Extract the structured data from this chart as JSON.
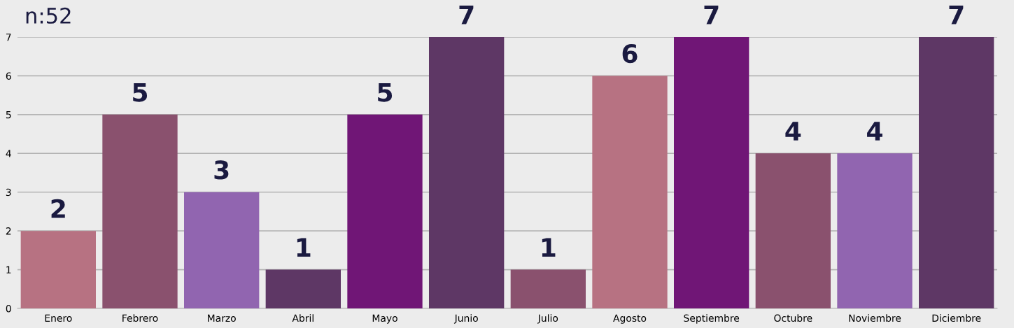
{
  "chart_data": {
    "type": "bar",
    "title": "n:52",
    "categories": [
      "Enero",
      "Febrero",
      "Marzo",
      "Abril",
      "Mayo",
      "Junio",
      "Julio",
      "Agosto",
      "Septiembre",
      "Octubre",
      "Noviembre",
      "Diciembre"
    ],
    "values": [
      2,
      5,
      3,
      1,
      5,
      7,
      1,
      6,
      7,
      4,
      4,
      7
    ],
    "colors": [
      "#b77282",
      "#8a516e",
      "#9165b0",
      "#5e3765",
      "#701676",
      "#5e3765",
      "#8a516e",
      "#b77282",
      "#701676",
      "#8a516e",
      "#9165b0",
      "#5e3765"
    ],
    "ylim": [
      0,
      7
    ],
    "yticks": [
      0,
      1,
      2,
      3,
      4,
      5,
      6,
      7
    ],
    "grid": "y",
    "data_labels": true,
    "legend": false
  }
}
